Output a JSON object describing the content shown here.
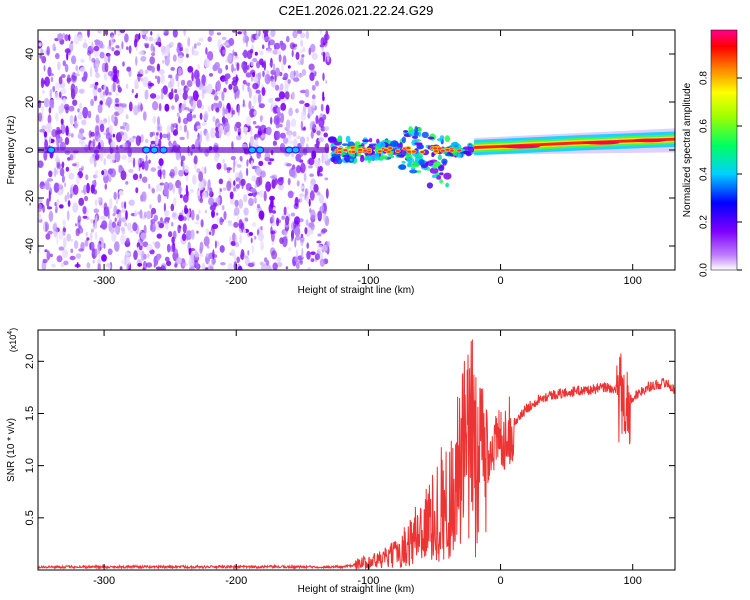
{
  "title": "C2E1.2026.021.22.24.G29",
  "chart_data": [
    {
      "type": "heatmap",
      "name": "spectrogram",
      "xlabel": "Height of straight line (km)",
      "ylabel": "Frequency (Hz)",
      "xlim": [
        -350,
        132
      ],
      "ylim": [
        -50,
        50
      ],
      "xticks": [
        -300,
        -200,
        -100,
        0,
        100
      ],
      "yticks": [
        -40,
        -20,
        0,
        20,
        40
      ],
      "colorbar": {
        "label": "Normalized spectral amplitude",
        "range": [
          0.0,
          1.0
        ],
        "ticks": [
          0.0,
          0.2,
          0.4,
          0.6,
          0.8
        ]
      },
      "regions": [
        {
          "x": [
            -350,
            -130
          ],
          "freq_center": 0,
          "spread": 50,
          "amplitude": 0.15,
          "description": "broadband noise"
        },
        {
          "x": [
            -130,
            -20
          ],
          "freq_center": 0,
          "spread": 10,
          "amplitude": 0.5
        },
        {
          "x": [
            -20,
            132
          ],
          "freq_center": 3,
          "spread": 3,
          "amplitude": 0.95
        }
      ]
    },
    {
      "type": "line",
      "name": "snr",
      "xlabel": "Height of straight line (km)",
      "ylabel": "SNR (10 * v/v)",
      "yscale_label": "(x10",
      "yscale_exp": "4",
      "xlim": [
        -350,
        132
      ],
      "ylim": [
        0,
        2.3
      ],
      "xticks": [
        -300,
        -200,
        -100,
        0,
        100
      ],
      "yticks": [
        0.5,
        1.0,
        1.5,
        2.0
      ],
      "color": "#ee3333",
      "series": [
        {
          "name": "SNR",
          "x": [
            -350,
            -300,
            -250,
            -200,
            -150,
            -120,
            -110,
            -100,
            -90,
            -80,
            -70,
            -60,
            -50,
            -45,
            -40,
            -35,
            -30,
            -25,
            -20,
            -15,
            -10,
            -5,
            0,
            5,
            10,
            20,
            30,
            40,
            50,
            60,
            70,
            80,
            90,
            95,
            100,
            110,
            120,
            125,
            132
          ],
          "y": [
            0.03,
            0.03,
            0.03,
            0.03,
            0.03,
            0.03,
            0.05,
            0.08,
            0.1,
            0.15,
            0.25,
            0.4,
            0.5,
            0.65,
            0.6,
            0.8,
            1.0,
            1.15,
            1.2,
            1.0,
            1.1,
            1.2,
            1.25,
            1.3,
            1.4,
            1.55,
            1.65,
            1.68,
            1.7,
            1.72,
            1.73,
            1.75,
            1.72,
            1.6,
            1.65,
            1.75,
            1.78,
            1.8,
            1.72
          ]
        }
      ]
    }
  ]
}
